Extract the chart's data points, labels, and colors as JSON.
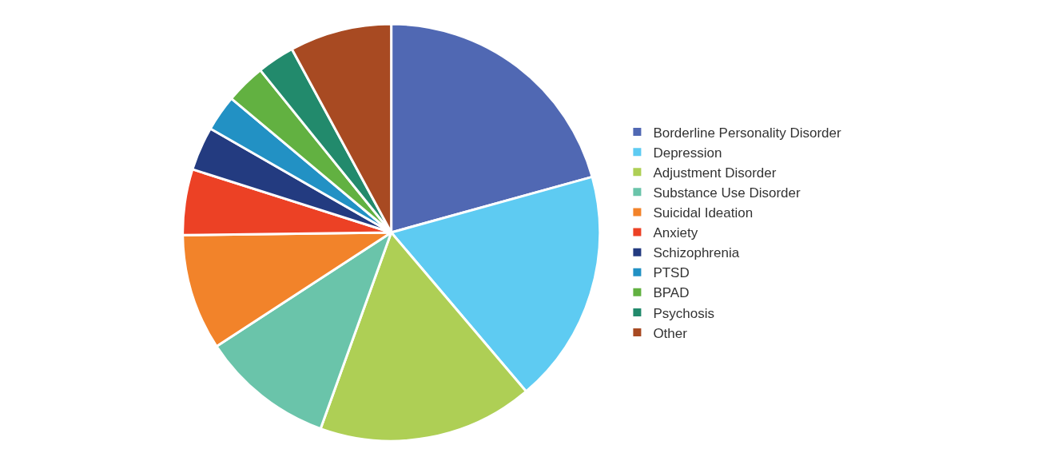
{
  "chart_data": {
    "type": "pie",
    "categories": [
      "Borderline Personality Disorder",
      "Depression",
      "Adjustment Disorder",
      "Substance Use Disorder",
      "Suicidal Ideation",
      "Anxiety",
      "Schizophrenia",
      "PTSD",
      "BPAD",
      "Psychosis",
      "Other"
    ],
    "values": [
      20.7,
      18.1,
      16.7,
      10.3,
      9.0,
      5.1,
      3.4,
      2.8,
      3.1,
      2.9,
      7.9
    ],
    "colors": [
      "#5068b3",
      "#5ecbf2",
      "#aecf55",
      "#6ac4aa",
      "#f2832a",
      "#ec4125",
      "#233b80",
      "#2291c4",
      "#62b141",
      "#228a6c",
      "#a84a22"
    ],
    "legend": "right"
  }
}
